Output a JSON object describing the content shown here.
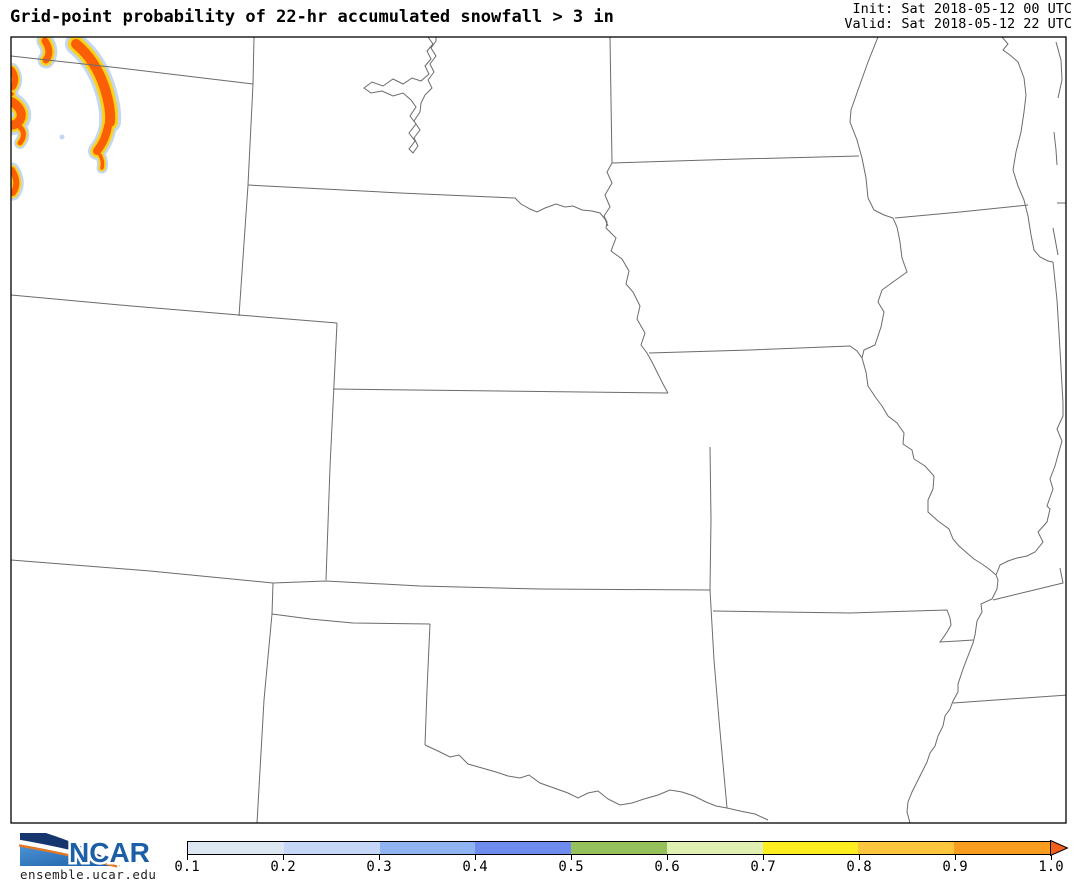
{
  "header": {
    "title": "Grid-point probability of 22-hr accumulated snowfall > 3 in",
    "init_label": "Init: Sat 2018-05-12 00 UTC",
    "valid_label": "Valid: Sat 2018-05-12 22 UTC"
  },
  "branding": {
    "logo_text": "NCAR",
    "site_url": "ensemble.ucar.edu"
  },
  "chart_data": {
    "type": "heatmap",
    "title": "Grid-point probability of 22-hr accumulated snowfall > 3 in",
    "init_time": "Sat 2018-05-12 00 UTC",
    "valid_time": "Sat 2018-05-12 22 UTC",
    "variable": "probability (0-1) that 22-hr accumulated snowfall exceeds 3 inches",
    "colorbar": {
      "orientation": "horizontal",
      "tick_labels": [
        "0.1",
        "0.2",
        "0.3",
        "0.4",
        "0.5",
        "0.6",
        "0.7",
        "0.8",
        "0.9",
        "1.0"
      ],
      "bin_colors": [
        "#dde7f1",
        "#c5d8f7",
        "#8fb3f3",
        "#6e8cee",
        "#95c05c",
        "#e0efb2",
        "#fcee21",
        "#fdc63c",
        "#f99d20"
      ],
      "extend_arrow_color": "#f4601c",
      "range": [
        0.1,
        1.0
      ]
    },
    "map_region": "Central United States: WY/MT/SD/MN/WI upper row, NE/IA/IL, CO/KS/MO, NM/TX/OK/AR, Lake Michigan at top right",
    "high_probability_features": [
      {
        "area": "large crescent-shaped area, map upper left (north-central Wyoming)",
        "probability": "0.9-1.0 core with 0.7-0.8 fringe and ~0.1-0.2 rim"
      },
      {
        "area": "several patches along the map left edge (western Wyoming)",
        "probability": "0.9-1.0 cores"
      },
      {
        "area": "everywhere else on map",
        "probability": "< 0.1 (white)"
      }
    ]
  },
  "colors": {
    "state_line": "#6b6b6b",
    "frame": "#000000",
    "blob_core": "#fa5f05",
    "blob_mid": "#fcd11a",
    "blob_rim": "#c3d7ef"
  }
}
